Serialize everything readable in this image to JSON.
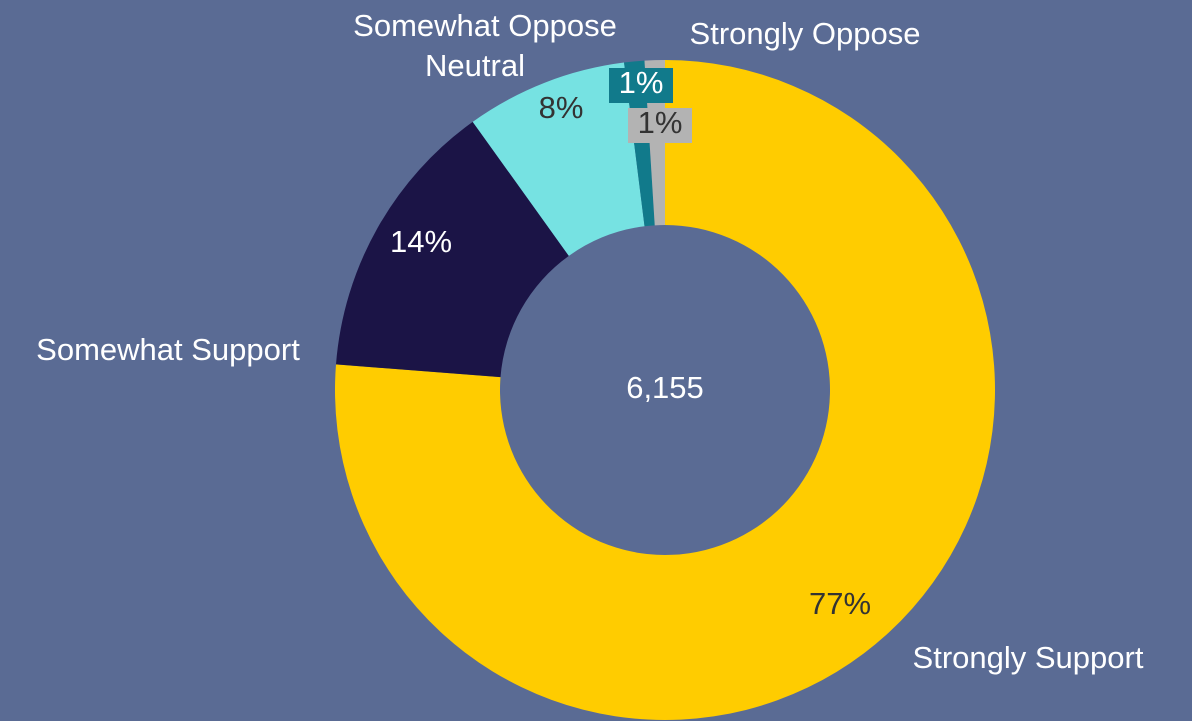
{
  "page": {
    "background": "#5a6b94"
  },
  "chart_data": {
    "type": "pie",
    "style": "donut",
    "center_label": "6,155",
    "slices": [
      {
        "name": "Strongly Support",
        "value": 77,
        "label": "77%",
        "color": "#ffcc00",
        "label_color": "#333333"
      },
      {
        "name": "Somewhat Support",
        "value": 14,
        "label": "14%",
        "color": "#1b1446",
        "label_color": "#ffffff"
      },
      {
        "name": "Neutral",
        "value": 8,
        "label": "8%",
        "color": "#76e2e2",
        "label_color": "#333333"
      },
      {
        "name": "Somewhat Oppose",
        "value": 1,
        "label": "1%",
        "color": "#117a8b",
        "label_color": "#ffffff"
      },
      {
        "name": "Strongly Oppose",
        "value": 1,
        "label": "1%",
        "color": "#b3b3b3",
        "label_color": "#333333"
      }
    ],
    "legend": "none",
    "category_labels": "outside"
  }
}
